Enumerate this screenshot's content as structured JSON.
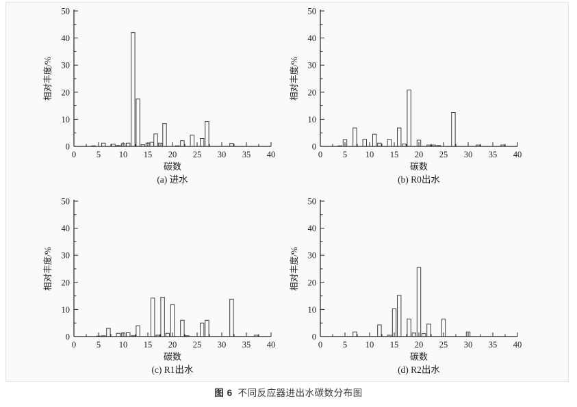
{
  "figure_caption": {
    "prefix": "图 6",
    "text": "不同反应器进出水碳数分布图"
  },
  "colors": {
    "axis": "#222222",
    "bar_stroke": "#3c3c3c",
    "bar_fill": "#fafafa",
    "panel_background": "#fafafa",
    "panel_border": "#dbe7e6",
    "text": "#1c1c1c"
  },
  "chart_data": [
    {
      "type": "bar",
      "caption": "(a) 进水",
      "xlabel": "碳数",
      "ylabel": "相对丰度/%",
      "xlim": [
        0,
        40
      ],
      "ylim": [
        0,
        50
      ],
      "x_major_step": 5,
      "x_minor_step": 2.5,
      "y_major_step": 10,
      "y_minor_step": 5,
      "points": [
        [
          4,
          0.2
        ],
        [
          6,
          1.2
        ],
        [
          8,
          0.8
        ],
        [
          9,
          0.3
        ],
        [
          10,
          1.0
        ],
        [
          11,
          1.2
        ],
        [
          12,
          42
        ],
        [
          13,
          17.5
        ],
        [
          14,
          0.6
        ],
        [
          15,
          1.2
        ],
        [
          15.8,
          1.5
        ],
        [
          16.6,
          4.6
        ],
        [
          17.5,
          1.2
        ],
        [
          18.4,
          8.4
        ],
        [
          21,
          0.2
        ],
        [
          22,
          2.1
        ],
        [
          24,
          4.2
        ],
        [
          26,
          2.9
        ],
        [
          27,
          9.2
        ],
        [
          32,
          1.1
        ]
      ]
    },
    {
      "type": "bar",
      "caption": "(b) R0出水",
      "xlabel": "碳数",
      "ylabel": "相对丰度/%",
      "xlim": [
        0,
        40
      ],
      "ylim": [
        0,
        50
      ],
      "x_major_step": 5,
      "x_minor_step": 2.5,
      "y_major_step": 10,
      "y_minor_step": 5,
      "points": [
        [
          4,
          0.2
        ],
        [
          5,
          2.5
        ],
        [
          7,
          6.8
        ],
        [
          9,
          2.6
        ],
        [
          11,
          4.5
        ],
        [
          12,
          1.2
        ],
        [
          14,
          2.6
        ],
        [
          16,
          6.8
        ],
        [
          17,
          0.9
        ],
        [
          18,
          20.8
        ],
        [
          20,
          2.3
        ],
        [
          22,
          0.5
        ],
        [
          23,
          0.5
        ],
        [
          24,
          0.3
        ],
        [
          27,
          12.5
        ],
        [
          32,
          0.5
        ],
        [
          37,
          0.5
        ]
      ]
    },
    {
      "type": "bar",
      "caption": "(c) R1出水",
      "xlabel": "碳数",
      "ylabel": "相对丰度/%",
      "xlim": [
        0,
        40
      ],
      "ylim": [
        0,
        50
      ],
      "x_major_step": 5,
      "x_minor_step": 2.5,
      "y_major_step": 10,
      "y_minor_step": 5,
      "points": [
        [
          5,
          0.2
        ],
        [
          6,
          0.3
        ],
        [
          7,
          3.0
        ],
        [
          9,
          1.2
        ],
        [
          10,
          1.3
        ],
        [
          11,
          1.4
        ],
        [
          12,
          0.3
        ],
        [
          13,
          4.0
        ],
        [
          16,
          14.2
        ],
        [
          17,
          0.5
        ],
        [
          18,
          14.5
        ],
        [
          19,
          1.2
        ],
        [
          20,
          11.8
        ],
        [
          22,
          6.0
        ],
        [
          23,
          0.3
        ],
        [
          26,
          5.0
        ],
        [
          27,
          6.0
        ],
        [
          32,
          13.8
        ],
        [
          37,
          0.5
        ]
      ]
    },
    {
      "type": "bar",
      "caption": "(d) R2出水",
      "xlabel": "碳数",
      "ylabel": "相对丰度/%",
      "xlim": [
        0,
        40
      ],
      "ylim": [
        0,
        50
      ],
      "x_major_step": 5,
      "x_minor_step": 2.5,
      "y_major_step": 10,
      "y_minor_step": 5,
      "points": [
        [
          7,
          1.7
        ],
        [
          12,
          4.3
        ],
        [
          14,
          0.5
        ],
        [
          15,
          10.3
        ],
        [
          16,
          15.2
        ],
        [
          18,
          6.5
        ],
        [
          19,
          1.3
        ],
        [
          20,
          25.5
        ],
        [
          21,
          1.1
        ],
        [
          22,
          4.6
        ],
        [
          25,
          6.5
        ],
        [
          30,
          1.7
        ]
      ]
    }
  ]
}
